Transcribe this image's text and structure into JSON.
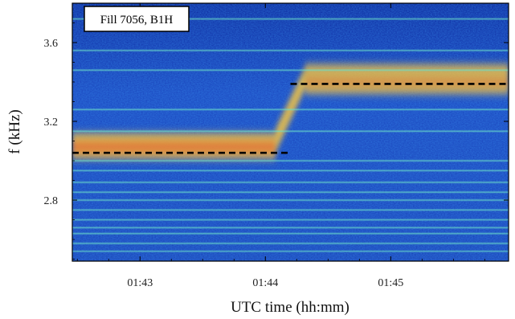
{
  "chart_data": {
    "type": "heatmap",
    "title": "",
    "legend_label": "Fill 7056, B1H",
    "legend_position": "top-left",
    "xlabel": "UTC time (hh:mm)",
    "ylabel": "f (kHz)",
    "x_ticks": [
      "01:43",
      "01:44",
      "01:45"
    ],
    "y_ticks": [
      "2.8",
      "3.2",
      "3.6"
    ],
    "x_tick_minutes": [
      103,
      104,
      105
    ],
    "y_tick_values": [
      2.8,
      3.2,
      3.6
    ],
    "xlim_minutes": [
      102.46,
      105.94
    ],
    "ylim_khz": [
      2.49,
      3.8
    ],
    "tune_segments": [
      {
        "x_start": 102.46,
        "x_end": 104.18,
        "f_khz": 3.04
      },
      {
        "x_start": 104.2,
        "x_end": 105.94,
        "f_khz": 3.39
      }
    ],
    "tune_transition": {
      "x_start": 104.08,
      "x_end": 104.32,
      "f_start_khz": 3.06,
      "f_end_khz": 3.4
    },
    "harmonic_lines_khz": [
      3.72,
      3.56,
      3.46,
      3.26,
      3.15,
      3.0,
      2.95,
      2.89,
      2.84,
      2.8,
      2.75,
      2.7,
      2.66,
      2.63,
      2.58,
      2.54
    ],
    "colors": {
      "background": "#1a3fae",
      "hot": "#f5c542",
      "peak": "#e84a20",
      "line": "#6ee0c8",
      "dashed": "#000000"
    },
    "grid": false
  }
}
